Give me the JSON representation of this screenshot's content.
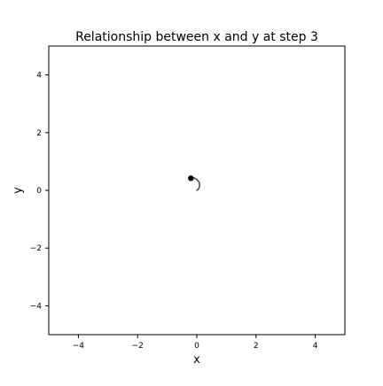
{
  "chart_data": {
    "type": "line",
    "title": "Relationship between x and y at step 3",
    "xlabel": "x",
    "ylabel": "y",
    "xlim": [
      -5,
      5
    ],
    "ylim": [
      -5,
      5
    ],
    "xticks": [
      -4,
      -2,
      0,
      2,
      4
    ],
    "yticks": [
      -4,
      -2,
      0,
      2,
      4
    ],
    "xtick_labels": [
      "−4",
      "−2",
      "0",
      "2",
      "4"
    ],
    "ytick_labels": [
      "−4",
      "−2",
      "0",
      "2",
      "4"
    ],
    "grid": false,
    "series": [
      {
        "x": [
          0.0,
          0.06,
          0.1,
          0.08,
          0.0,
          -0.08,
          -0.18
        ],
        "y": [
          0.0,
          0.05,
          0.16,
          0.28,
          0.38,
          0.43,
          0.42
        ],
        "color": "#444444"
      }
    ],
    "current_point": {
      "x": -0.2,
      "y": 0.42,
      "color": "#000000"
    }
  }
}
